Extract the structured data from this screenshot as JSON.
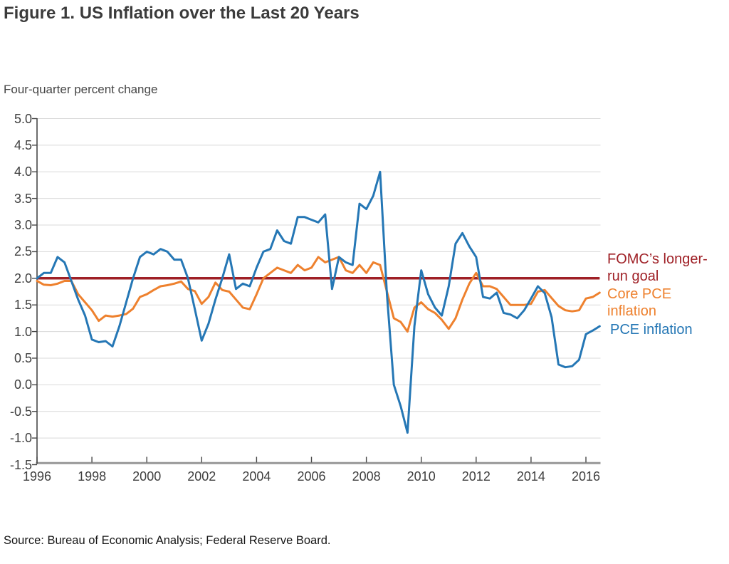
{
  "title": "Figure 1. US Inflation over the Last 20 Years",
  "y_axis_label": "Four-quarter percent change",
  "source": "Source: Bureau of Economic Analysis; Federal Reserve Board.",
  "legend": {
    "goal_label": "FOMC’s longer-\nrun goal",
    "core_label": "Core PCE\ninflation",
    "pce_label": "PCE inflation"
  },
  "colors": {
    "pce": "#2577b5",
    "core": "#ee812e",
    "goal": "#9f2026",
    "grid": "#d9d9d9",
    "x_axis": "#9c9c9c",
    "y_axis": "#474747",
    "tick": "#474747"
  },
  "chart_data": {
    "type": "line",
    "title": "Figure 1. US Inflation over the Last 20 Years",
    "ylabel": "Four-quarter percent change",
    "xlabel": "",
    "grid": "horizontal",
    "legend_position": "right-of-plot",
    "xlim": [
      1996,
      2016.5
    ],
    "ylim": [
      -1.5,
      5.0
    ],
    "x_start": 1996,
    "x_step": 0.25,
    "x_ticks": [
      {
        "value": 1996,
        "label": "1996"
      },
      {
        "value": 1998,
        "label": "1998"
      },
      {
        "value": 2000,
        "label": "2000"
      },
      {
        "value": 2002,
        "label": "2002"
      },
      {
        "value": 2004,
        "label": "2004"
      },
      {
        "value": 2006,
        "label": "2006"
      },
      {
        "value": 2008,
        "label": "2008"
      },
      {
        "value": 2010,
        "label": "2010"
      },
      {
        "value": 2012,
        "label": "2012"
      },
      {
        "value": 2014,
        "label": "2014"
      },
      {
        "value": 2016,
        "label": "2016"
      }
    ],
    "y_ticks": [
      {
        "value": 5.0,
        "label": "5.0"
      },
      {
        "value": 4.5,
        "label": "4.5"
      },
      {
        "value": 4.0,
        "label": "4.0"
      },
      {
        "value": 3.5,
        "label": "3.5"
      },
      {
        "value": 3.0,
        "label": "3.0"
      },
      {
        "value": 2.5,
        "label": "2.5"
      },
      {
        "value": 2.0,
        "label": "2.0"
      },
      {
        "value": 1.5,
        "label": "1.5"
      },
      {
        "value": 1.0,
        "label": "1.0"
      },
      {
        "value": 0.5,
        "label": "0.5"
      },
      {
        "value": 0.0,
        "label": "0.0"
      },
      {
        "value": -0.5,
        "label": "-0.5"
      },
      {
        "value": -1.0,
        "label": "-1.0"
      },
      {
        "value": -1.5,
        "label": "-1.5"
      }
    ],
    "series": [
      {
        "name": "FOMC's longer-run goal",
        "kind": "constant",
        "constant": 2.0,
        "color": "#9f2026",
        "stroke_width": 3.5
      },
      {
        "name": "Core PCE inflation",
        "kind": "quarterly",
        "color": "#ee812e",
        "stroke_width": 3,
        "values": [
          1.95,
          1.88,
          1.87,
          1.9,
          1.95,
          1.95,
          1.7,
          1.55,
          1.4,
          1.2,
          1.3,
          1.28,
          1.3,
          1.33,
          1.43,
          1.65,
          1.7,
          1.78,
          1.85,
          1.87,
          1.9,
          1.94,
          1.8,
          1.76,
          1.52,
          1.65,
          1.92,
          1.78,
          1.75,
          1.6,
          1.45,
          1.42,
          1.7,
          2.0,
          2.1,
          2.2,
          2.15,
          2.1,
          2.25,
          2.15,
          2.2,
          2.4,
          2.3,
          2.35,
          2.4,
          2.15,
          2.1,
          2.25,
          2.1,
          2.3,
          2.25,
          1.75,
          1.25,
          1.18,
          1.0,
          1.45,
          1.55,
          1.42,
          1.35,
          1.22,
          1.05,
          1.25,
          1.6,
          1.9,
          2.1,
          1.85,
          1.85,
          1.8,
          1.65,
          1.5,
          1.5,
          1.5,
          1.52,
          1.75,
          1.78,
          1.63,
          1.48,
          1.4,
          1.38,
          1.4,
          1.62,
          1.65,
          1.73
        ]
      },
      {
        "name": "PCE inflation",
        "kind": "quarterly",
        "color": "#2577b5",
        "stroke_width": 3,
        "values": [
          2.0,
          2.1,
          2.1,
          2.4,
          2.3,
          1.95,
          1.6,
          1.3,
          0.85,
          0.8,
          0.82,
          0.72,
          1.1,
          1.55,
          2.0,
          2.4,
          2.5,
          2.45,
          2.55,
          2.5,
          2.35,
          2.35,
          2.0,
          1.42,
          0.83,
          1.15,
          1.6,
          2.0,
          2.45,
          1.8,
          1.9,
          1.85,
          2.2,
          2.5,
          2.55,
          2.9,
          2.7,
          2.65,
          3.15,
          3.15,
          3.1,
          3.05,
          3.2,
          1.8,
          2.4,
          2.3,
          2.25,
          3.4,
          3.3,
          3.55,
          4.0,
          1.7,
          0.0,
          -0.4,
          -0.9,
          1.1,
          2.15,
          1.7,
          1.45,
          1.3,
          1.85,
          2.65,
          2.85,
          2.6,
          2.4,
          1.65,
          1.62,
          1.73,
          1.35,
          1.32,
          1.25,
          1.4,
          1.62,
          1.85,
          1.72,
          1.27,
          0.38,
          0.33,
          0.35,
          0.47,
          0.95,
          1.02,
          1.1
        ]
      }
    ]
  }
}
